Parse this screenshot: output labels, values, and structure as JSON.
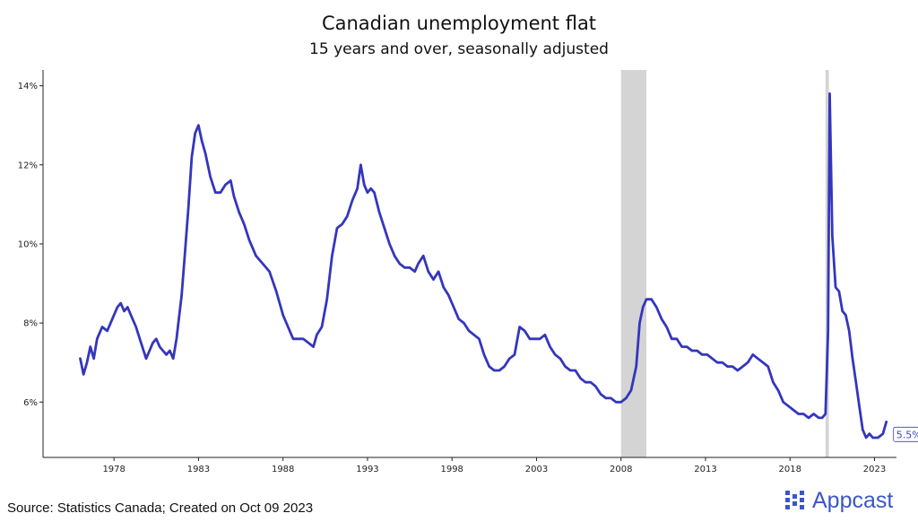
{
  "chart_data": {
    "type": "line",
    "title": "Canadian unemployment flat",
    "subtitle": "15 years and over, seasonally adjusted",
    "xlabel": "",
    "ylabel": "",
    "xlim": [
      1973.8,
      2024.3
    ],
    "ylim": [
      4.6,
      14.4
    ],
    "x_ticks": [
      1978,
      1983,
      1988,
      1993,
      1998,
      2003,
      2008,
      2013,
      2018,
      2023
    ],
    "y_ticks": [
      6,
      8,
      10,
      12,
      14
    ],
    "y_tick_labels": [
      "6%",
      "8%",
      "10%",
      "12%",
      "14%"
    ],
    "grid": false,
    "recessions": [
      [
        2008.0,
        2009.5
      ],
      [
        2020.1,
        2020.3
      ]
    ],
    "end_label": "5.5%",
    "series": [
      {
        "color": "#3436bd",
        "x": [
          1976.0,
          1976.2,
          1976.4,
          1976.6,
          1976.8,
          1977.0,
          1977.3,
          1977.6,
          1977.9,
          1978.2,
          1978.4,
          1978.6,
          1978.8,
          1979.0,
          1979.3,
          1979.6,
          1979.9,
          1980.1,
          1980.3,
          1980.5,
          1980.7,
          1980.9,
          1981.1,
          1981.3,
          1981.5,
          1981.7,
          1982.0,
          1982.2,
          1982.4,
          1982.6,
          1982.8,
          1983.0,
          1983.2,
          1983.4,
          1983.7,
          1984.0,
          1984.3,
          1984.6,
          1984.9,
          1985.1,
          1985.4,
          1985.7,
          1986.0,
          1986.4,
          1986.8,
          1987.2,
          1987.6,
          1988.0,
          1988.3,
          1988.6,
          1988.9,
          1989.2,
          1989.5,
          1989.8,
          1990.0,
          1990.3,
          1990.6,
          1990.9,
          1991.2,
          1991.5,
          1991.8,
          1992.1,
          1992.4,
          1992.6,
          1992.8,
          1993.0,
          1993.2,
          1993.4,
          1993.7,
          1994.0,
          1994.3,
          1994.6,
          1994.9,
          1995.2,
          1995.5,
          1995.8,
          1996.0,
          1996.3,
          1996.6,
          1996.9,
          1997.2,
          1997.5,
          1997.8,
          1998.1,
          1998.4,
          1998.7,
          1999.0,
          1999.3,
          1999.6,
          1999.9,
          2000.2,
          2000.5,
          2000.8,
          2001.1,
          2001.4,
          2001.7,
          2002.0,
          2002.3,
          2002.6,
          2002.9,
          2003.2,
          2003.5,
          2003.8,
          2004.1,
          2004.4,
          2004.7,
          2005.0,
          2005.3,
          2005.6,
          2005.9,
          2006.2,
          2006.5,
          2006.8,
          2007.1,
          2007.4,
          2007.7,
          2008.0,
          2008.3,
          2008.6,
          2008.9,
          2009.1,
          2009.3,
          2009.5,
          2009.8,
          2010.1,
          2010.4,
          2010.7,
          2011.0,
          2011.3,
          2011.6,
          2011.9,
          2012.2,
          2012.5,
          2012.8,
          2013.1,
          2013.4,
          2013.7,
          2014.0,
          2014.3,
          2014.6,
          2014.9,
          2015.2,
          2015.5,
          2015.8,
          2016.1,
          2016.4,
          2016.7,
          2017.0,
          2017.3,
          2017.6,
          2017.9,
          2018.2,
          2018.5,
          2018.8,
          2019.1,
          2019.4,
          2019.7,
          2019.9,
          2020.1,
          2020.25,
          2020.35,
          2020.5,
          2020.7,
          2020.9,
          2021.1,
          2021.3,
          2021.5,
          2021.7,
          2021.9,
          2022.1,
          2022.3,
          2022.5,
          2022.7,
          2022.9,
          2023.2,
          2023.5,
          2023.7
        ],
        "values": [
          7.1,
          6.7,
          7.0,
          7.4,
          7.1,
          7.6,
          7.9,
          7.8,
          8.1,
          8.4,
          8.5,
          8.3,
          8.4,
          8.2,
          7.9,
          7.5,
          7.1,
          7.3,
          7.5,
          7.6,
          7.4,
          7.3,
          7.2,
          7.3,
          7.1,
          7.6,
          8.7,
          9.8,
          10.9,
          12.2,
          12.8,
          13.0,
          12.6,
          12.3,
          11.7,
          11.3,
          11.3,
          11.5,
          11.6,
          11.2,
          10.8,
          10.5,
          10.1,
          9.7,
          9.5,
          9.3,
          8.8,
          8.2,
          7.9,
          7.6,
          7.6,
          7.6,
          7.5,
          7.4,
          7.7,
          7.9,
          8.6,
          9.7,
          10.4,
          10.5,
          10.7,
          11.1,
          11.4,
          12.0,
          11.5,
          11.3,
          11.4,
          11.3,
          10.8,
          10.4,
          10.0,
          9.7,
          9.5,
          9.4,
          9.4,
          9.3,
          9.5,
          9.7,
          9.3,
          9.1,
          9.3,
          8.9,
          8.7,
          8.4,
          8.1,
          8.0,
          7.8,
          7.7,
          7.6,
          7.2,
          6.9,
          6.8,
          6.8,
          6.9,
          7.1,
          7.2,
          7.9,
          7.8,
          7.6,
          7.6,
          7.6,
          7.7,
          7.4,
          7.2,
          7.1,
          6.9,
          6.8,
          6.8,
          6.6,
          6.5,
          6.5,
          6.4,
          6.2,
          6.1,
          6.1,
          6.0,
          6.0,
          6.1,
          6.3,
          6.9,
          8.0,
          8.4,
          8.6,
          8.6,
          8.4,
          8.1,
          7.9,
          7.6,
          7.6,
          7.4,
          7.4,
          7.3,
          7.3,
          7.2,
          7.2,
          7.1,
          7.0,
          7.0,
          6.9,
          6.9,
          6.8,
          6.9,
          7.0,
          7.2,
          7.1,
          7.0,
          6.9,
          6.5,
          6.3,
          6.0,
          5.9,
          5.8,
          5.7,
          5.7,
          5.6,
          5.7,
          5.6,
          5.6,
          5.7,
          7.8,
          13.8,
          10.2,
          8.9,
          8.8,
          8.3,
          8.2,
          7.8,
          7.1,
          6.5,
          5.9,
          5.3,
          5.1,
          5.2,
          5.1,
          5.1,
          5.2,
          5.5
        ]
      }
    ]
  },
  "source_text": "Source: Statistics Canada; Created on Oct 09 2023",
  "logo": {
    "text": "Appcast",
    "icon": "appcast-logo-icon",
    "color": "#3a56c8"
  }
}
